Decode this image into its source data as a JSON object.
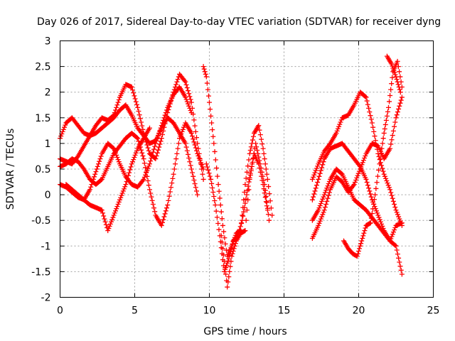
{
  "chart_data": {
    "type": "scatter",
    "title": "Day 026 of 2017, Sidereal Day-to-day VTEC variation (SDTVAR) for receiver dyng",
    "xlabel": "GPS time / hours",
    "ylabel": "SDTVAR / TECUs",
    "xlim": [
      0,
      25
    ],
    "ylim": [
      -2,
      3
    ],
    "x_ticks": [
      "0",
      "5",
      "10",
      "15",
      "20",
      "25"
    ],
    "y_ticks": [
      "-2",
      "-1.5",
      "-1",
      "-0.5",
      "0",
      "0.5",
      "1",
      "1.5",
      "2",
      "2.5",
      "3"
    ],
    "grid": true,
    "marker": "+",
    "series_color": "#ff0000",
    "series": [
      {
        "name": "trace-1",
        "x": [
          0.0,
          0.4,
          0.8,
          1.2,
          1.6,
          2.0,
          2.4,
          2.8,
          3.2,
          3.6,
          4.0,
          4.4,
          4.8,
          5.2,
          5.6,
          6.0,
          6.4,
          6.8,
          7.2,
          7.6,
          8.0,
          8.4,
          8.8,
          9.2
        ],
        "y": [
          1.1,
          1.4,
          1.5,
          1.35,
          1.2,
          1.15,
          1.2,
          1.3,
          1.4,
          1.5,
          1.65,
          1.75,
          1.55,
          1.3,
          1.15,
          1.0,
          1.05,
          1.3,
          1.5,
          1.4,
          1.2,
          1.0,
          0.5,
          0.0
        ]
      },
      {
        "name": "trace-2",
        "x": [
          0.0,
          0.4,
          0.8,
          1.2,
          1.6,
          2.0,
          2.4,
          2.8,
          3.2,
          3.6,
          4.0,
          4.4,
          4.8,
          5.2,
          5.6,
          6.0,
          6.4,
          6.8,
          7.2,
          7.6,
          8.0,
          8.4,
          8.8,
          9.2,
          9.6
        ],
        "y": [
          0.7,
          0.65,
          0.6,
          0.75,
          0.95,
          1.15,
          1.35,
          1.5,
          1.45,
          1.55,
          1.9,
          2.15,
          2.1,
          1.7,
          1.2,
          0.8,
          0.7,
          1.1,
          1.6,
          2.0,
          2.35,
          2.2,
          1.8,
          1.0,
          0.3
        ]
      },
      {
        "name": "trace-3",
        "x": [
          0.0,
          0.4,
          0.8,
          1.2,
          1.6,
          2.0,
          2.4,
          2.8,
          3.2,
          3.6,
          4.0,
          4.4,
          4.8,
          5.2,
          5.6,
          6.0,
          6.4,
          6.8,
          7.2,
          7.6,
          8.0,
          8.4,
          8.8
        ],
        "y": [
          0.2,
          0.15,
          0.05,
          -0.05,
          -0.1,
          0.1,
          0.45,
          0.8,
          1.0,
          0.9,
          0.6,
          0.35,
          0.2,
          0.15,
          0.3,
          0.6,
          1.0,
          1.35,
          1.7,
          1.95,
          2.1,
          1.9,
          1.6
        ]
      },
      {
        "name": "trace-4",
        "x": [
          0.0,
          0.4,
          0.8,
          1.2,
          1.6,
          2.0,
          2.4,
          2.8,
          3.2,
          3.6,
          4.0,
          4.4,
          4.8,
          5.2,
          5.6,
          6.0,
          6.4,
          6.8,
          7.2,
          7.6,
          8.0,
          8.4,
          8.8,
          9.2,
          9.6
        ],
        "y": [
          0.55,
          0.6,
          0.7,
          0.65,
          0.5,
          0.3,
          0.2,
          0.3,
          0.55,
          0.8,
          0.95,
          1.1,
          1.2,
          1.1,
          0.7,
          0.1,
          -0.4,
          -0.6,
          -0.2,
          0.4,
          1.1,
          1.4,
          1.2,
          0.8,
          0.5
        ]
      },
      {
        "name": "trace-5",
        "x": [
          0.4,
          0.8,
          1.2,
          1.6,
          2.0,
          2.4,
          2.8,
          3.2,
          3.6,
          4.0,
          4.4,
          4.8,
          5.2,
          5.6,
          6.0
        ],
        "y": [
          0.2,
          0.1,
          0.0,
          -0.1,
          -0.2,
          -0.25,
          -0.3,
          -0.7,
          -0.4,
          -0.1,
          0.2,
          0.6,
          0.9,
          1.1,
          1.3
        ]
      },
      {
        "name": "trace-6",
        "x": [
          9.6,
          9.8,
          10.0,
          10.3,
          10.6,
          10.9,
          11.2,
          11.5,
          11.8,
          12.1,
          12.4,
          12.7,
          13.0,
          13.3,
          13.6,
          13.9,
          14.2
        ],
        "y": [
          2.5,
          2.3,
          1.8,
          1.0,
          0.2,
          -0.6,
          -1.2,
          -1.0,
          -0.75,
          -0.7,
          0.2,
          0.8,
          1.2,
          1.35,
          0.9,
          0.3,
          -0.4
        ]
      },
      {
        "name": "trace-7",
        "x": [
          9.8,
          10.1,
          10.4,
          10.7,
          11.0,
          11.3,
          11.6,
          11.9,
          12.2,
          12.5,
          12.8,
          13.1,
          13.4,
          13.7,
          14.0
        ],
        "y": [
          0.6,
          0.3,
          -0.2,
          -0.8,
          -1.5,
          -1.25,
          -0.9,
          -0.8,
          -0.5,
          0.0,
          0.5,
          1.0,
          0.6,
          0.2,
          -0.5
        ]
      },
      {
        "name": "trace-8",
        "x": [
          10.8,
          11.0,
          11.2,
          11.5,
          11.8,
          12.1,
          12.4,
          12.7,
          13.0,
          13.3,
          13.6,
          13.9
        ],
        "y": [
          -0.8,
          -1.3,
          -1.8,
          -1.2,
          -0.9,
          -0.75,
          -0.7,
          0.3,
          0.8,
          0.6,
          0.2,
          -0.3
        ]
      },
      {
        "name": "trace-9",
        "x": [
          16.9,
          17.3,
          17.7,
          18.1,
          18.5,
          18.9,
          19.3,
          19.7,
          20.1,
          20.5,
          20.9,
          21.3,
          21.7,
          22.1,
          22.5,
          22.9
        ],
        "y": [
          0.3,
          0.6,
          0.85,
          1.0,
          1.2,
          1.5,
          1.55,
          1.75,
          2.0,
          1.9,
          1.4,
          0.8,
          0.4,
          0.1,
          -0.3,
          -0.6
        ]
      },
      {
        "name": "trace-10",
        "x": [
          16.9,
          17.3,
          17.7,
          18.1,
          18.5,
          18.9,
          19.3,
          19.7,
          20.1,
          20.5,
          20.9,
          21.3,
          21.7,
          22.1,
          22.5,
          22.9
        ],
        "y": [
          -0.1,
          0.3,
          0.7,
          0.9,
          0.95,
          1.0,
          0.85,
          0.7,
          0.55,
          0.3,
          -0.1,
          -0.4,
          -0.7,
          -0.9,
          -1.0,
          -1.55
        ]
      },
      {
        "name": "trace-11",
        "x": [
          16.9,
          17.3,
          17.7,
          18.1,
          18.5,
          18.9,
          19.3,
          19.7,
          20.1,
          20.5,
          20.9,
          21.3,
          21.7,
          22.1,
          22.5,
          22.9
        ],
        "y": [
          -0.85,
          -0.6,
          -0.3,
          0.1,
          0.35,
          0.25,
          0.05,
          0.2,
          0.5,
          0.8,
          1.0,
          0.95,
          0.7,
          0.9,
          1.5,
          1.9
        ]
      },
      {
        "name": "trace-12",
        "x": [
          16.9,
          17.3,
          17.7,
          18.1,
          18.5,
          18.9,
          19.3,
          19.7,
          20.1,
          20.5,
          20.9,
          21.3,
          21.7,
          22.1,
          22.5,
          22.9
        ],
        "y": [
          -0.5,
          -0.3,
          0.0,
          0.3,
          0.5,
          0.4,
          0.15,
          -0.1,
          -0.2,
          -0.3,
          -0.45,
          -0.6,
          -0.75,
          -0.9,
          -0.6,
          -0.55
        ]
      },
      {
        "name": "trace-13",
        "x": [
          19.0,
          19.3,
          19.6,
          19.9,
          20.2,
          20.5,
          20.8,
          21.1,
          21.4,
          21.7,
          22.0,
          22.3,
          22.6,
          22.9
        ],
        "y": [
          -0.9,
          -1.05,
          -1.15,
          -1.2,
          -0.9,
          -0.6,
          -0.55,
          0.0,
          0.6,
          1.2,
          1.7,
          2.4,
          2.6,
          2.1
        ]
      },
      {
        "name": "trace-14",
        "x": [
          21.9,
          22.2,
          22.5,
          22.8
        ],
        "y": [
          2.7,
          2.55,
          2.3,
          2.0
        ]
      }
    ]
  }
}
